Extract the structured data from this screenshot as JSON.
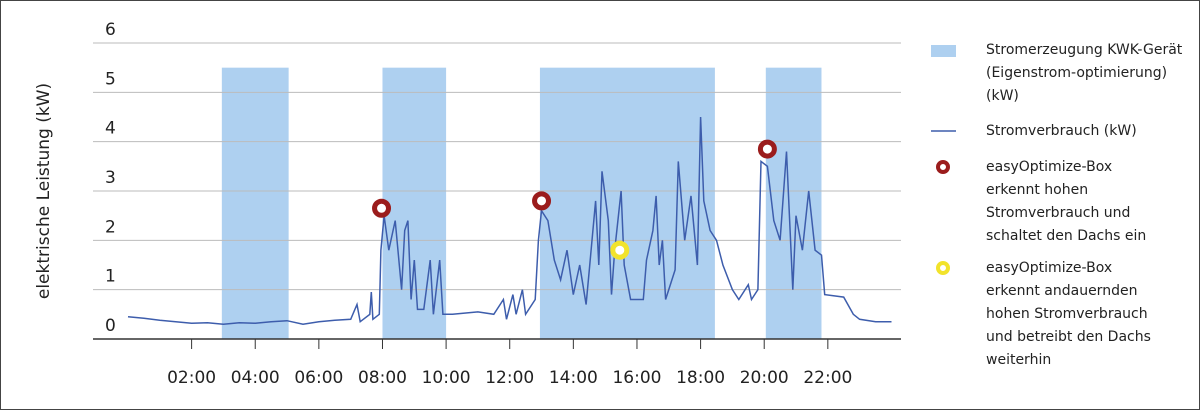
{
  "chart_data": {
    "type": "line",
    "ylabel": "elektrische Leistung (kW)",
    "xlim": [
      -1.1,
      24.3
    ],
    "xticks": [
      {
        "value": 2,
        "label": "02:00"
      },
      {
        "value": 4,
        "label": "04:00"
      },
      {
        "value": 6,
        "label": "06:00"
      },
      {
        "value": 8,
        "label": "08:00"
      },
      {
        "value": 10,
        "label": "10:00"
      },
      {
        "value": 12,
        "label": "12:00"
      },
      {
        "value": 14,
        "label": "14:00"
      },
      {
        "value": 16,
        "label": "16:00"
      },
      {
        "value": 18,
        "label": "18:00"
      },
      {
        "value": 20,
        "label": "20:00"
      },
      {
        "value": 22,
        "label": "22:00"
      }
    ],
    "ylim": [
      0,
      6
    ],
    "yticks": [
      0,
      1,
      2,
      3,
      4,
      5,
      6
    ],
    "grid": true,
    "bands": {
      "name": "Stromerzeugung KWK-Gerät (Eigenstrom-optimierung) (kW)",
      "color": "#aed0f0",
      "top": 5.5,
      "ranges": [
        [
          2.95,
          5.05
        ],
        [
          8.0,
          10.0
        ],
        [
          12.95,
          18.45
        ],
        [
          20.05,
          21.8
        ]
      ]
    },
    "x": [
      0,
      0.5,
      1,
      1.5,
      2,
      2.5,
      3,
      3.5,
      4,
      4.5,
      5,
      5.5,
      6,
      6.5,
      7,
      7.2,
      7.3,
      7.6,
      7.65,
      7.7,
      7.9,
      7.95,
      8.05,
      8.2,
      8.4,
      8.6,
      8.7,
      8.8,
      8.9,
      9.0,
      9.1,
      9.3,
      9.5,
      9.6,
      9.8,
      9.9,
      10.2,
      11,
      11.5,
      11.8,
      11.9,
      12.1,
      12.2,
      12.4,
      12.5,
      12.8,
      12.9,
      13.0,
      13.2,
      13.4,
      13.6,
      13.8,
      14.0,
      14.2,
      14.4,
      14.5,
      14.7,
      14.8,
      14.9,
      15.1,
      15.2,
      15.3,
      15.5,
      15.6,
      15.8,
      16.2,
      16.3,
      16.5,
      16.6,
      16.7,
      16.8,
      16.9,
      17.2,
      17.3,
      17.5,
      17.7,
      17.9,
      18.0,
      18.1,
      18.3,
      18.5,
      18.7,
      19.0,
      19.2,
      19.5,
      19.6,
      19.8,
      19.9,
      20.1,
      20.3,
      20.5,
      20.7,
      20.9,
      21.0,
      21.2,
      21.4,
      21.6,
      21.8,
      21.9,
      22.5,
      22.8,
      23,
      23.5,
      24
    ],
    "series": [
      {
        "name": "Stromverbrauch (kW)",
        "color": "#3d5dac",
        "values": [
          0.45,
          0.42,
          0.38,
          0.35,
          0.32,
          0.33,
          0.3,
          0.33,
          0.32,
          0.35,
          0.37,
          0.3,
          0.35,
          0.38,
          0.4,
          0.7,
          0.35,
          0.5,
          0.95,
          0.4,
          0.5,
          1.8,
          2.5,
          1.8,
          2.4,
          1.0,
          2.2,
          2.4,
          0.8,
          1.6,
          0.6,
          0.6,
          1.6,
          0.5,
          1.6,
          0.5,
          0.5,
          0.55,
          0.5,
          0.8,
          0.4,
          0.9,
          0.5,
          1.0,
          0.5,
          0.8,
          2.0,
          2.6,
          2.4,
          1.6,
          1.2,
          1.8,
          0.9,
          1.5,
          0.7,
          1.4,
          2.8,
          1.5,
          3.4,
          2.4,
          0.9,
          1.8,
          3.0,
          1.5,
          0.8,
          0.8,
          1.6,
          2.2,
          2.9,
          1.5,
          2.0,
          0.8,
          1.4,
          3.6,
          2.0,
          2.9,
          1.5,
          4.5,
          2.8,
          2.2,
          2.0,
          1.5,
          1.0,
          0.8,
          1.1,
          0.8,
          1.0,
          3.6,
          3.5,
          2.4,
          2.0,
          3.8,
          1.0,
          2.5,
          1.8,
          3.0,
          1.8,
          1.7,
          0.9,
          0.85,
          0.5,
          0.4,
          0.35,
          0.35
        ]
      }
    ],
    "markers": [
      {
        "name": "easyOptimize-Box erkennt hohen Stromverbrauch und schaltet den Dachs ein",
        "color": "#9b1c1c",
        "x": [
          7.97,
          13.0,
          20.1
        ],
        "y": [
          2.65,
          2.8,
          3.85
        ]
      },
      {
        "name": "easyOptimize-Box erkennt andauernden hohen Stromverbrauch und betreibt den Dachs weiterhin",
        "color": "#f2e32b",
        "x": [
          15.46
        ],
        "y": [
          1.8
        ]
      }
    ]
  }
}
